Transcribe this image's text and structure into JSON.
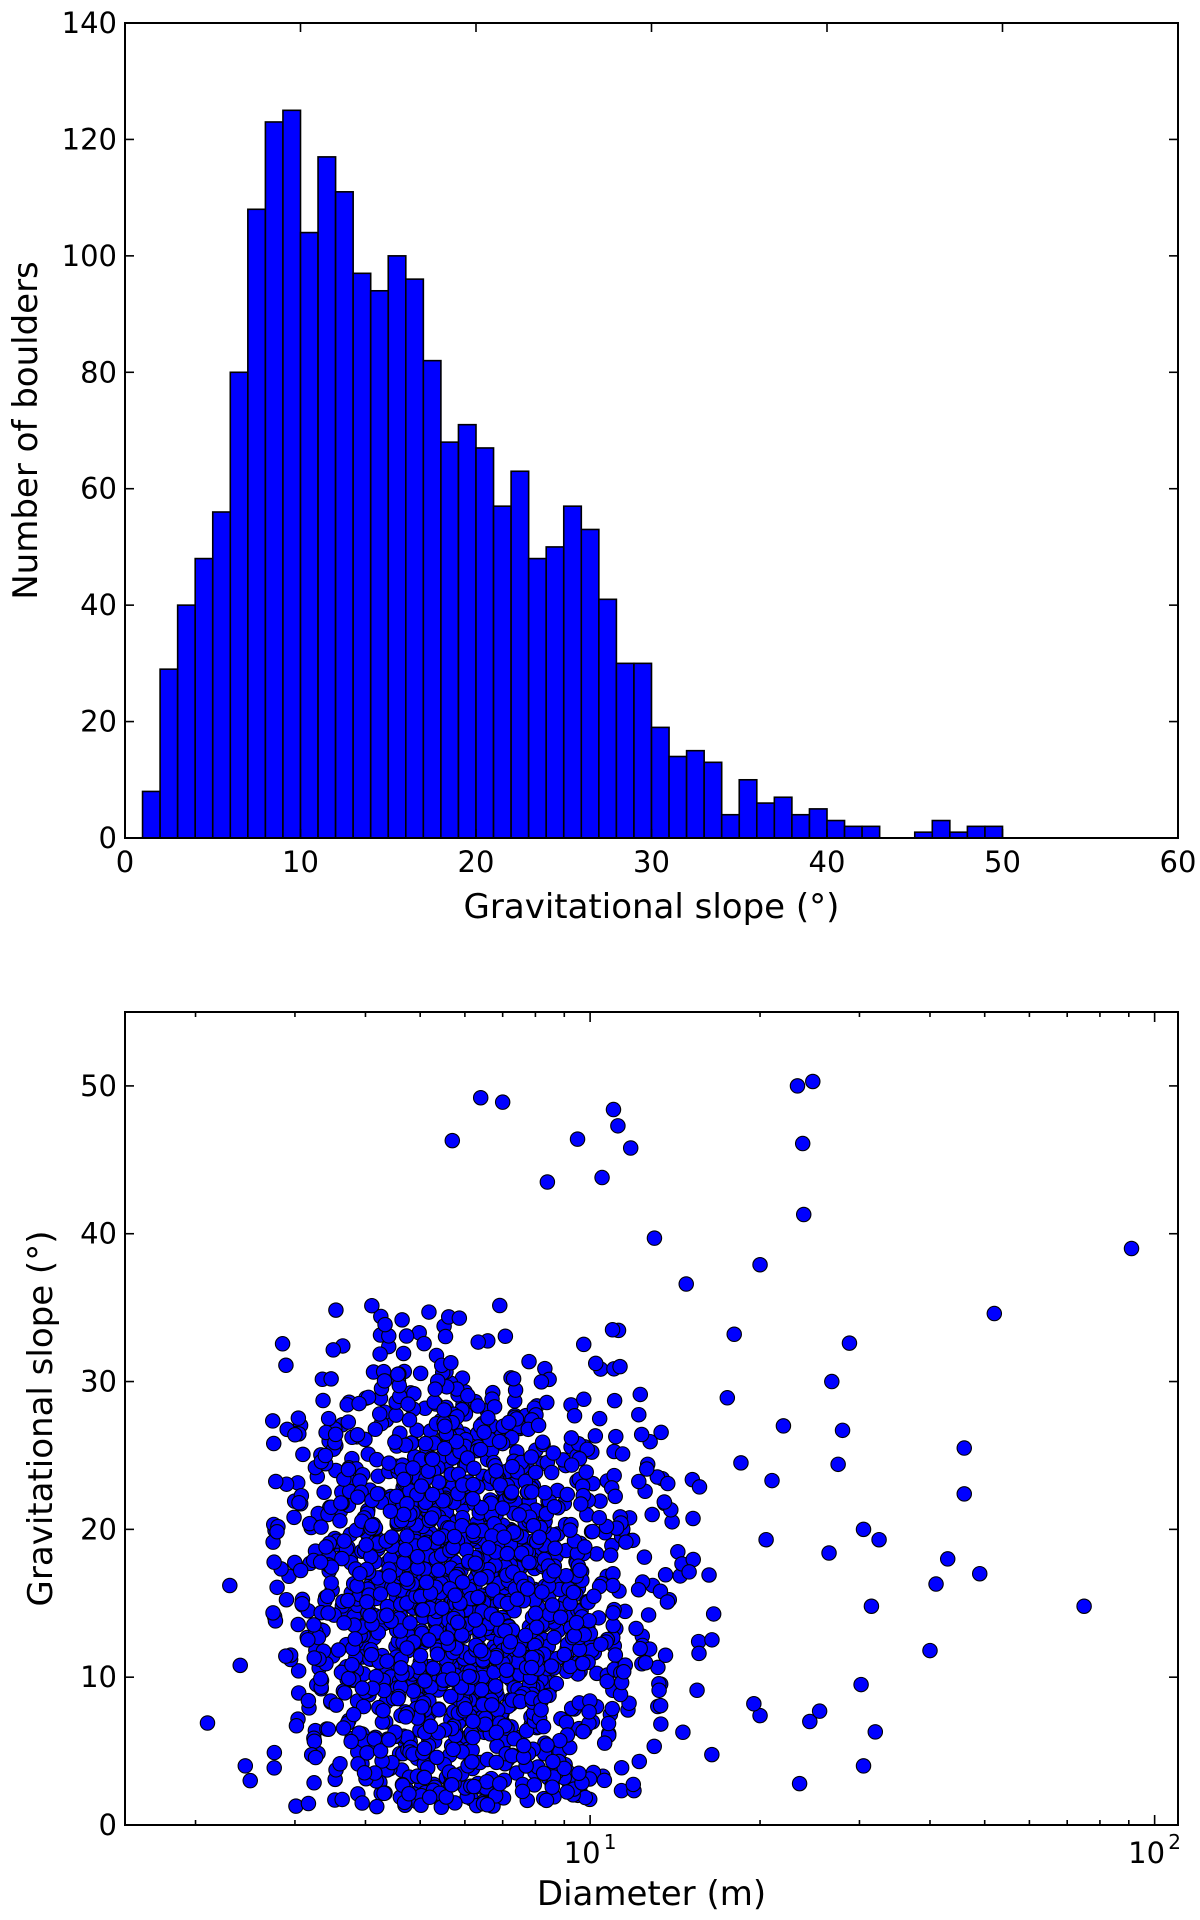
{
  "chart_data": [
    {
      "type": "bar",
      "xlabel": "Gravitational slope (°)",
      "ylabel": "Number of boulders",
      "xlim": [
        0,
        60
      ],
      "ylim": [
        0,
        140
      ],
      "xticks": [
        0,
        10,
        20,
        30,
        40,
        50,
        60
      ],
      "yticks": [
        0,
        20,
        40,
        60,
        80,
        100,
        120,
        140
      ],
      "bar_color": "#0000ff",
      "edge_color": "#000000",
      "bins": [
        [
          1,
          2
        ],
        [
          2,
          3
        ],
        [
          3,
          4
        ],
        [
          4,
          5
        ],
        [
          5,
          6
        ],
        [
          6,
          7
        ],
        [
          7,
          8
        ],
        [
          8,
          9
        ],
        [
          9,
          10
        ],
        [
          10,
          11
        ],
        [
          11,
          12
        ],
        [
          12,
          13
        ],
        [
          13,
          14
        ],
        [
          14,
          15
        ],
        [
          15,
          16
        ],
        [
          16,
          17
        ],
        [
          17,
          18
        ],
        [
          18,
          19
        ],
        [
          19,
          20
        ],
        [
          20,
          21
        ],
        [
          21,
          22
        ],
        [
          22,
          23
        ],
        [
          23,
          24
        ],
        [
          24,
          25
        ],
        [
          25,
          26
        ],
        [
          26,
          27
        ],
        [
          27,
          28
        ],
        [
          28,
          29
        ],
        [
          29,
          30
        ],
        [
          30,
          31
        ],
        [
          31,
          32
        ],
        [
          32,
          33
        ],
        [
          33,
          34
        ],
        [
          34,
          35
        ],
        [
          35,
          36
        ],
        [
          36,
          37
        ],
        [
          37,
          38
        ],
        [
          38,
          39
        ],
        [
          39,
          40
        ],
        [
          40,
          41
        ],
        [
          41,
          42
        ],
        [
          42,
          43
        ],
        [
          43,
          44
        ],
        [
          44,
          45
        ],
        [
          45,
          46
        ],
        [
          46,
          47
        ],
        [
          47,
          48
        ],
        [
          48,
          49
        ],
        [
          49,
          50
        ],
        [
          50,
          51
        ]
      ],
      "values": [
        8,
        29,
        40,
        48,
        56,
        80,
        108,
        123,
        125,
        104,
        117,
        111,
        97,
        94,
        100,
        96,
        82,
        68,
        71,
        67,
        57,
        63,
        48,
        50,
        57,
        53,
        41,
        30,
        30,
        19,
        14,
        15,
        13,
        4,
        10,
        6,
        7,
        4,
        5,
        3,
        2,
        2,
        0,
        0,
        1,
        3,
        1,
        2,
        2,
        0
      ]
    },
    {
      "type": "scatter",
      "xlabel": "Diameter (m)",
      "ylabel": "Gravitational slope (°)",
      "x_scale": "log",
      "xlim": [
        1.5,
        110
      ],
      "ylim": [
        0,
        55
      ],
      "yticks": [
        0,
        10,
        20,
        30,
        40,
        50
      ],
      "xticks_major": [
        {
          "value": 10,
          "base": "10",
          "exp": "1"
        },
        {
          "value": 100,
          "base": "10",
          "exp": "2"
        }
      ],
      "marker_color": "#0000ff",
      "edge_color": "#000000",
      "points_shown": 1800,
      "outliers": [
        [
          2.1,
          6.9
        ],
        [
          2.3,
          16.2
        ],
        [
          2.4,
          10.8
        ],
        [
          2.45,
          4.0
        ],
        [
          2.5,
          3.0
        ],
        [
          3.0,
          26.4
        ],
        [
          3.05,
          21.8
        ],
        [
          5.7,
          46.3
        ],
        [
          6.4,
          49.2
        ],
        [
          7.0,
          48.9
        ],
        [
          9.5,
          46.4
        ],
        [
          11.0,
          48.4
        ],
        [
          11.2,
          47.3
        ],
        [
          11.8,
          45.8
        ],
        [
          10.5,
          43.8
        ],
        [
          8.4,
          43.5
        ],
        [
          13.0,
          39.7
        ],
        [
          14.8,
          36.6
        ],
        [
          18.0,
          33.2
        ],
        [
          20.0,
          37.9
        ],
        [
          23.3,
          50.0
        ],
        [
          24.8,
          50.3
        ],
        [
          23.8,
          46.1
        ],
        [
          23.9,
          41.3
        ],
        [
          28.8,
          32.6
        ],
        [
          28.0,
          26.7
        ],
        [
          30.5,
          20.0
        ],
        [
          32.5,
          19.3
        ],
        [
          31.5,
          14.8
        ],
        [
          32.0,
          6.3
        ],
        [
          30.2,
          9.5
        ],
        [
          30.5,
          4.0
        ],
        [
          23.5,
          2.8
        ],
        [
          24.5,
          7.0
        ],
        [
          25.5,
          7.7
        ],
        [
          26.5,
          18.4
        ],
        [
          41.0,
          16.3
        ],
        [
          43.0,
          18.0
        ],
        [
          46.0,
          25.5
        ],
        [
          46.0,
          22.4
        ],
        [
          49.0,
          17.0
        ],
        [
          52.0,
          34.6
        ],
        [
          40.0,
          11.8
        ],
        [
          75.0,
          14.8
        ],
        [
          91.0,
          39.0
        ],
        [
          20.0,
          7.4
        ],
        [
          20.5,
          19.3
        ],
        [
          22.0,
          27.0
        ],
        [
          26.8,
          30.0
        ],
        [
          21.0,
          23.3
        ],
        [
          18.5,
          24.5
        ],
        [
          17.5,
          28.9
        ],
        [
          19.5,
          8.2
        ],
        [
          27.5,
          24.4
        ]
      ]
    }
  ]
}
